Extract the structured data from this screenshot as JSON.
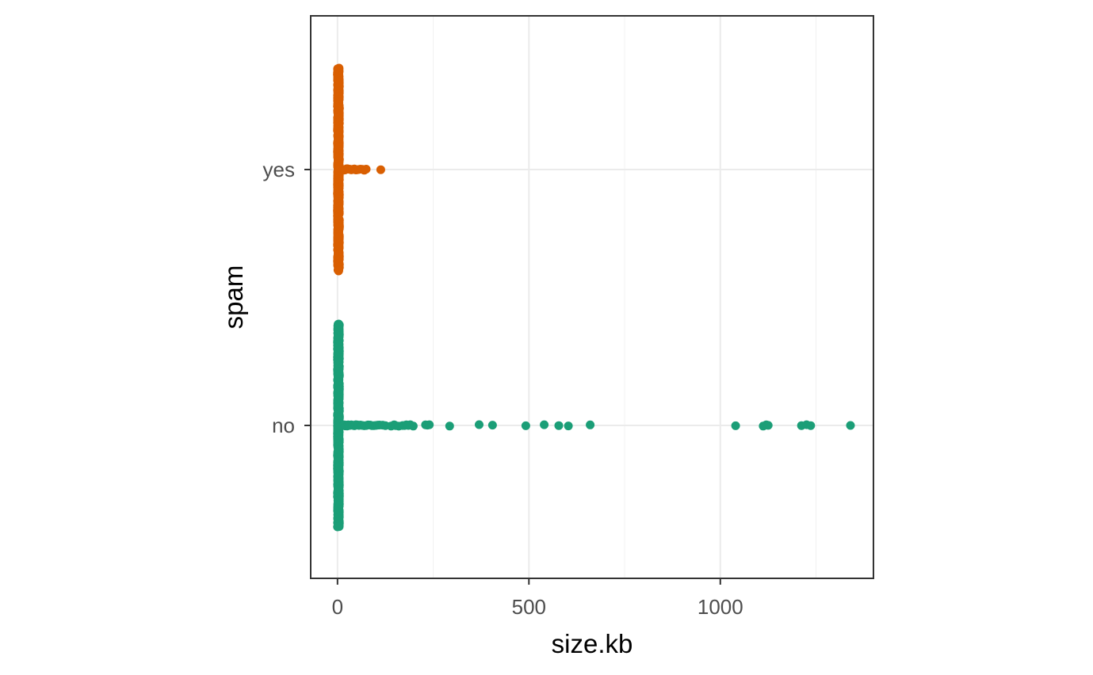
{
  "chart_data": {
    "type": "scatter",
    "xlabel": "size.kb",
    "ylabel": "spam",
    "xlim": [
      -70,
      1400
    ],
    "x_ticks": [
      {
        "value": 0,
        "label": "0"
      },
      {
        "value": 500,
        "label": "500"
      },
      {
        "value": 1000,
        "label": "1000"
      }
    ],
    "x_minor_ticks": [
      250,
      750,
      1250
    ],
    "categories": [
      "no",
      "yes"
    ],
    "grid": true,
    "legend": "none",
    "series": [
      {
        "category": "no",
        "color": "#1b9e77",
        "jitter_band": {
          "x": [
            0,
            5
          ],
          "y_spread": 0.4
        },
        "points": [
          6,
          8,
          10,
          12,
          14,
          16,
          18,
          20,
          22,
          25,
          28,
          30,
          33,
          36,
          40,
          44,
          48,
          52,
          56,
          60,
          65,
          70,
          75,
          80,
          85,
          90,
          95,
          100,
          105,
          110,
          118,
          125,
          140,
          148,
          152,
          160,
          170,
          175,
          180,
          185,
          190,
          198,
          230,
          235,
          240,
          293,
          370,
          405,
          492,
          540,
          578,
          603,
          660,
          1040,
          1112,
          1120,
          1125,
          1212,
          1225,
          1236,
          1340
        ]
      },
      {
        "category": "yes",
        "color": "#d95f02",
        "jitter_band": {
          "x": [
            0,
            5
          ],
          "y_spread": 0.4
        },
        "points": [
          6,
          8,
          10,
          12,
          14,
          16,
          18,
          20,
          22,
          24,
          26,
          28,
          30,
          33,
          36,
          40,
          44,
          48,
          52,
          56,
          60,
          65,
          70,
          75,
          113
        ]
      }
    ]
  }
}
